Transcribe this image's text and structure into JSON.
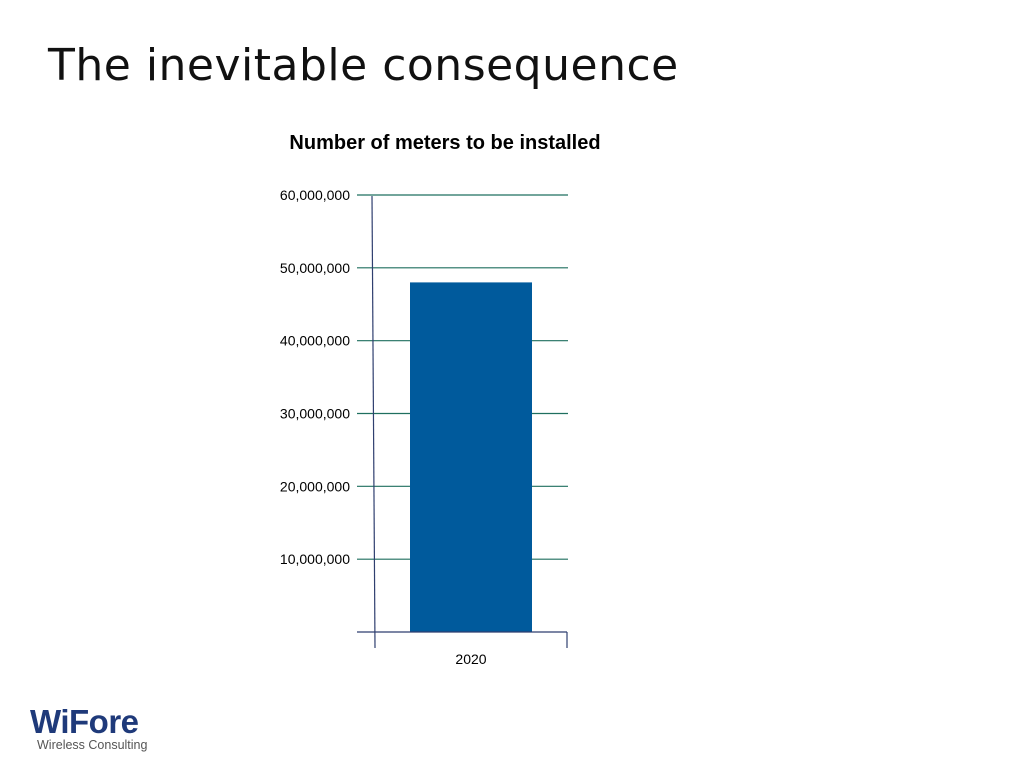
{
  "slide": {
    "title": "The inevitable consequence"
  },
  "colors": {
    "bar": "#005a9c",
    "gridline": "#1f6f5f",
    "axis": "#2f3f6f",
    "logo": "#1f3a7a"
  },
  "chart_data": {
    "type": "bar",
    "title": "Number of meters to be installed",
    "categories": [
      "2020"
    ],
    "values": [
      48000000
    ],
    "ylim": [
      0,
      60000000
    ],
    "yticks": [
      10000000,
      20000000,
      30000000,
      40000000,
      50000000,
      60000000
    ],
    "ytick_labels": [
      "10,000,000",
      "20,000,000",
      "30,000,000",
      "40,000,000",
      "50,000,000",
      "60,000,000"
    ],
    "xlabel": "",
    "ylabel": "",
    "grid": true,
    "legend": "none"
  },
  "logo": {
    "name": "WiFore",
    "tagline": "Wireless Consulting"
  }
}
